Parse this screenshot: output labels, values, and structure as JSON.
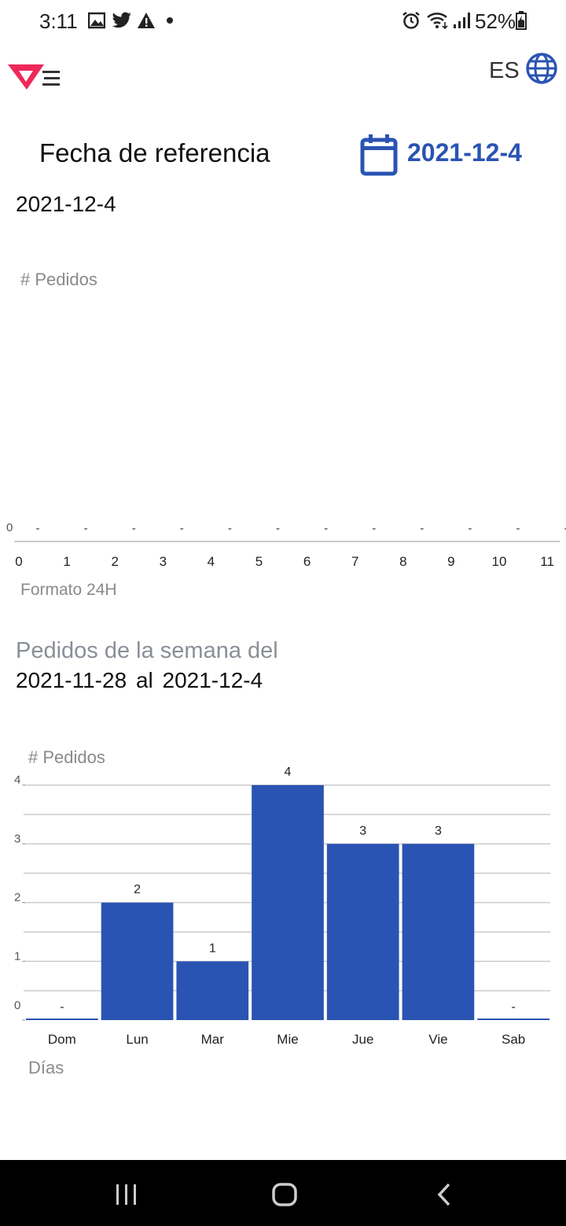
{
  "status_bar": {
    "time": "3:11",
    "battery": "52%",
    "left_icons": [
      "image-icon",
      "twitter-icon",
      "warning-icon",
      "dot-icon"
    ],
    "right_icons": [
      "alarm-icon",
      "wifi-icon",
      "signal-icon",
      "battery-icon"
    ]
  },
  "app_bar": {
    "language": "ES",
    "logo_color": "#f0285a"
  },
  "reference": {
    "title": "Fecha de referencia",
    "date_button": "2021-12-4",
    "selected_date": "2021-12-4",
    "accent": "#2a54b3"
  },
  "hourly_chart": {
    "ylabel": "# Pedidos",
    "xlabel": "Formato 24H",
    "y_tick": "0"
  },
  "weekly": {
    "title": "Pedidos de la semana del",
    "start": "2021-11-28",
    "connector": "al",
    "end": "2021-12-4"
  },
  "weekly_chart": {
    "ylabel": "# Pedidos",
    "xlabel": "Días"
  },
  "chart_data": [
    {
      "type": "bar",
      "categories": [
        "0",
        "1",
        "2",
        "3",
        "4",
        "5",
        "6",
        "7",
        "8",
        "9",
        "10",
        "11"
      ],
      "values": [
        0,
        0,
        0,
        0,
        0,
        0,
        0,
        0,
        0,
        0,
        0,
        0
      ],
      "data_labels": [
        "-",
        "-",
        "-",
        "-",
        "-",
        "-",
        "-",
        "-",
        "-",
        "-",
        "-",
        "-"
      ],
      "xlabel": "Formato 24H",
      "ylabel": "# Pedidos",
      "yticks": [
        "0"
      ],
      "ylim": [
        0,
        1
      ],
      "grid": false
    },
    {
      "type": "bar",
      "categories": [
        "Dom",
        "Lun",
        "Mar",
        "Mie",
        "Jue",
        "Vie",
        "Sab"
      ],
      "values": [
        0,
        2,
        1,
        4,
        3,
        3,
        0
      ],
      "data_labels": [
        "-",
        "2",
        "1",
        "4",
        "3",
        "3",
        "-"
      ],
      "xlabel": "Días",
      "ylabel": "# Pedidos",
      "yticks": [
        "0",
        "1",
        "2",
        "3",
        "4"
      ],
      "ylim": [
        0,
        4
      ],
      "grid": true,
      "color": "#2a54b3"
    }
  ]
}
